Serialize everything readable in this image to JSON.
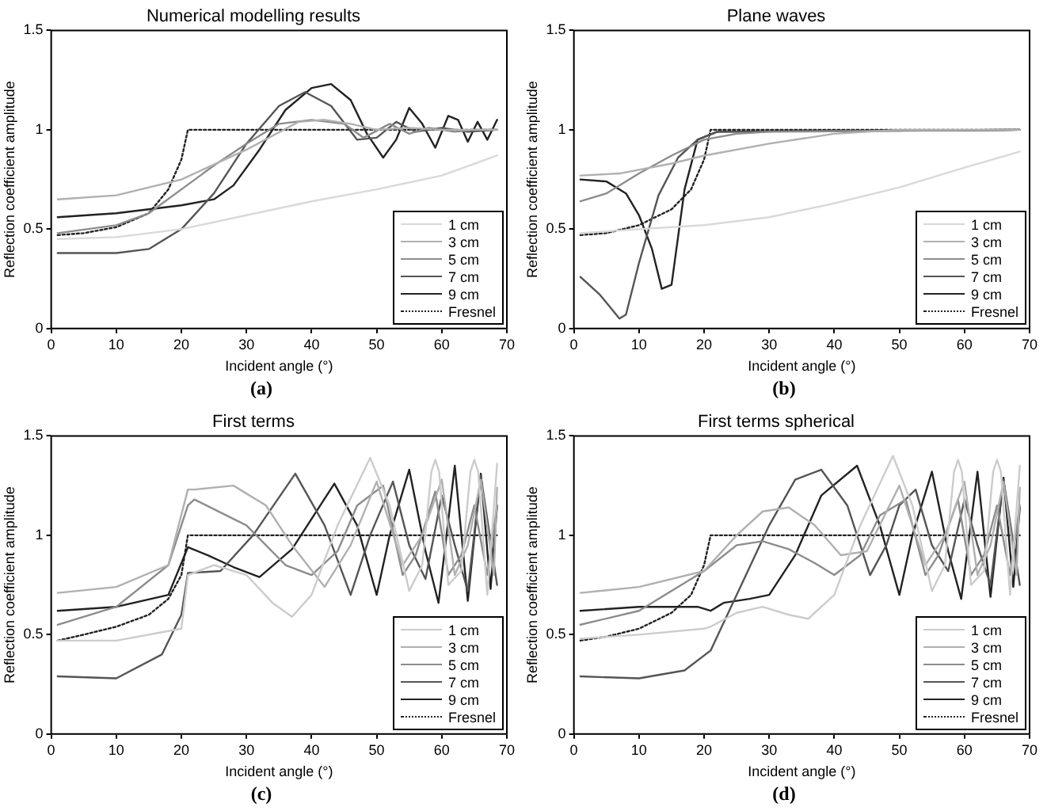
{
  "chart_data": [
    {
      "type": "line",
      "title": "Numerical modelling results",
      "xlabel": "Incident angle (°)",
      "ylabel": "Reflection coefficient amplitude",
      "xlim": [
        0,
        70
      ],
      "xticks": [
        0,
        10,
        20,
        30,
        40,
        50,
        60,
        70
      ],
      "ylim": [
        0,
        1.5
      ],
      "yticks": [
        0,
        0.5,
        1,
        1.5
      ],
      "legend": "bottom right",
      "annotations": [
        "(a)"
      ],
      "series": [
        {
          "name": "1 cm",
          "color": "#d9d9d9",
          "x": [
            1,
            10,
            20,
            30,
            40,
            50,
            60,
            68.5
          ],
          "values": [
            0.45,
            0.46,
            0.5,
            0.57,
            0.64,
            0.7,
            0.77,
            0.87
          ]
        },
        {
          "name": "3 cm",
          "color": "#b0b0b0",
          "x": [
            1,
            10,
            20,
            30,
            38,
            42,
            46,
            50,
            55,
            60,
            68.5
          ],
          "values": [
            0.65,
            0.67,
            0.75,
            0.9,
            1.04,
            1.05,
            1.03,
            1.0,
            1.01,
            1.0,
            1.0
          ]
        },
        {
          "name": "5 cm",
          "color": "#8c8c8c",
          "x": [
            1,
            10,
            15,
            20,
            25,
            30,
            35,
            40,
            45,
            48,
            52,
            55,
            58,
            62,
            65,
            68.5
          ],
          "values": [
            0.48,
            0.52,
            0.58,
            0.7,
            0.82,
            0.93,
            1.03,
            1.05,
            1.03,
            0.96,
            1.03,
            0.98,
            1.01,
            0.99,
            1.0,
            1.0
          ]
        },
        {
          "name": "7 cm",
          "color": "#555555",
          "x": [
            1,
            10,
            15,
            20,
            25,
            30,
            35,
            39,
            43,
            47,
            50,
            53,
            56,
            60,
            64,
            68.5
          ],
          "values": [
            0.38,
            0.38,
            0.4,
            0.5,
            0.68,
            0.93,
            1.12,
            1.19,
            1.12,
            0.95,
            0.96,
            1.04,
            0.99,
            1.01,
            0.99,
            1.0
          ]
        },
        {
          "name": "9 cm",
          "color": "#222222",
          "x": [
            1,
            10,
            20,
            25,
            28,
            32,
            36,
            40,
            43,
            46,
            48.5,
            51,
            53,
            55,
            57,
            59,
            61,
            62.5,
            64,
            65.5,
            67,
            68.5
          ],
          "values": [
            0.56,
            0.58,
            0.62,
            0.65,
            0.72,
            0.9,
            1.1,
            1.21,
            1.23,
            1.15,
            0.98,
            0.86,
            0.95,
            1.11,
            1.03,
            0.91,
            1.07,
            1.05,
            0.94,
            1.04,
            0.95,
            1.05
          ]
        },
        {
          "name": "Fresnel",
          "color": "#222222",
          "line_style": "dotted",
          "x": [
            1,
            5,
            10,
            15,
            18,
            20,
            21,
            68.5
          ],
          "values": [
            0.47,
            0.48,
            0.51,
            0.58,
            0.7,
            0.85,
            1.0,
            1.0
          ]
        }
      ]
    },
    {
      "type": "line",
      "title": "Plane waves",
      "xlabel": "Incident angle (°)",
      "ylabel": "Reflection coefficient amplitude",
      "xlim": [
        0,
        70
      ],
      "xticks": [
        0,
        10,
        20,
        30,
        40,
        50,
        60,
        70
      ],
      "ylim": [
        0,
        1.5
      ],
      "yticks": [
        0,
        0.5,
        1,
        1.5
      ],
      "legend": "bottom right",
      "annotations": [
        "(b)"
      ],
      "series": [
        {
          "name": "1 cm",
          "color": "#d9d9d9",
          "x": [
            1,
            10,
            20,
            30,
            40,
            50,
            60,
            68.5
          ],
          "values": [
            0.48,
            0.5,
            0.52,
            0.56,
            0.63,
            0.71,
            0.81,
            0.89
          ]
        },
        {
          "name": "3 cm",
          "color": "#b0b0b0",
          "x": [
            1,
            7,
            15,
            20,
            30,
            40,
            50,
            60,
            68.5
          ],
          "values": [
            0.77,
            0.78,
            0.83,
            0.87,
            0.93,
            0.98,
            1.0,
            1.0,
            1.0
          ]
        },
        {
          "name": "5 cm",
          "color": "#8c8c8c",
          "x": [
            1,
            5,
            10,
            15,
            20,
            25,
            30,
            68.5
          ],
          "values": [
            0.64,
            0.68,
            0.78,
            0.87,
            0.95,
            0.98,
            0.99,
            1.0
          ]
        },
        {
          "name": "7 cm",
          "color": "#555555",
          "x": [
            1,
            4,
            7,
            8,
            10,
            13,
            16,
            19,
            22,
            68.5
          ],
          "values": [
            0.26,
            0.17,
            0.05,
            0.07,
            0.33,
            0.67,
            0.86,
            0.95,
            0.99,
            1.0
          ]
        },
        {
          "name": "9 cm",
          "color": "#222222",
          "x": [
            1,
            5,
            8,
            10,
            12,
            13.5,
            15,
            17,
            19,
            22,
            68.5
          ],
          "values": [
            0.75,
            0.74,
            0.68,
            0.57,
            0.4,
            0.2,
            0.22,
            0.7,
            0.95,
            0.99,
            1.0
          ]
        },
        {
          "name": "Fresnel",
          "color": "#222222",
          "line_style": "dotted",
          "x": [
            1,
            5,
            10,
            15,
            18,
            20,
            21,
            68.5
          ],
          "values": [
            0.47,
            0.48,
            0.52,
            0.6,
            0.7,
            0.85,
            1.0,
            1.0
          ]
        }
      ]
    },
    {
      "type": "line",
      "title": "First terms",
      "xlabel": "Incident angle (°)",
      "ylabel": "Reflection coefficient amplitude",
      "xlim": [
        0,
        70
      ],
      "xticks": [
        0,
        10,
        20,
        30,
        40,
        50,
        60,
        70
      ],
      "ylim": [
        0,
        1.5
      ],
      "yticks": [
        0,
        0.5,
        1,
        1.5
      ],
      "legend": "bottom right",
      "annotations": [
        "(c)"
      ],
      "series": [
        {
          "name": "1 cm",
          "color": "#cccccc",
          "x": [
            1,
            10,
            20,
            21,
            25,
            30,
            34,
            37,
            40,
            44,
            49,
            52,
            55,
            57,
            58.4,
            59,
            59.6,
            61,
            63,
            64.4,
            65,
            65.6,
            67,
            68.5
          ],
          "values": [
            0.47,
            0.47,
            0.53,
            0.8,
            0.85,
            0.8,
            0.66,
            0.59,
            0.7,
            1.05,
            1.39,
            1.15,
            0.72,
            0.85,
            1.32,
            1.38,
            1.32,
            0.75,
            0.82,
            1.32,
            1.38,
            1.32,
            0.7,
            1.36
          ]
        },
        {
          "name": "3 cm",
          "color": "#b0b0b0",
          "x": [
            1,
            10,
            18,
            21,
            22,
            28,
            33,
            37,
            42,
            46,
            50,
            54,
            57,
            60,
            62,
            64,
            66,
            68,
            68.5
          ],
          "values": [
            0.71,
            0.74,
            0.85,
            1.23,
            1.23,
            1.25,
            1.15,
            0.95,
            0.74,
            0.95,
            1.27,
            0.85,
            1.0,
            1.28,
            0.8,
            0.95,
            1.28,
            0.8,
            1.24
          ]
        },
        {
          "name": "5 cm",
          "color": "#8c8c8c",
          "x": [
            1,
            10,
            18,
            21,
            22,
            30,
            36,
            40,
            44,
            47,
            51,
            54,
            56,
            59,
            61,
            63,
            65,
            67,
            68.5
          ],
          "values": [
            0.55,
            0.64,
            0.85,
            1.15,
            1.18,
            1.05,
            0.85,
            0.8,
            0.92,
            1.15,
            1.25,
            0.8,
            0.9,
            1.22,
            0.8,
            0.9,
            1.15,
            0.8,
            1.15
          ]
        },
        {
          "name": "7 cm",
          "color": "#555555",
          "x": [
            1,
            10,
            17,
            20,
            21,
            26,
            31,
            37.5,
            42,
            46,
            49,
            52.5,
            55,
            57.5,
            60,
            62,
            64,
            66,
            68.5
          ],
          "values": [
            0.29,
            0.28,
            0.4,
            0.6,
            0.81,
            0.82,
            1.0,
            1.31,
            1.05,
            0.7,
            1.0,
            1.27,
            0.95,
            0.78,
            1.2,
            0.95,
            0.72,
            1.3,
            0.75
          ]
        },
        {
          "name": "9 cm",
          "color": "#222222",
          "x": [
            1,
            10,
            18,
            21,
            24,
            28,
            32,
            37,
            43.5,
            47,
            50,
            52,
            55,
            57.5,
            59.5,
            62,
            64,
            66,
            67.5,
            68.5
          ],
          "values": [
            0.62,
            0.64,
            0.7,
            0.94,
            0.9,
            0.84,
            0.79,
            0.93,
            1.26,
            1.05,
            0.7,
            1.0,
            1.33,
            0.92,
            0.66,
            1.35,
            0.67,
            1.31,
            0.73,
            1.15
          ]
        },
        {
          "name": "Fresnel",
          "color": "#222222",
          "line_style": "dotted",
          "x": [
            1,
            5,
            10,
            15,
            18,
            20,
            21,
            68.5
          ],
          "values": [
            0.47,
            0.5,
            0.54,
            0.6,
            0.68,
            0.8,
            1.0,
            1.0
          ]
        }
      ]
    },
    {
      "type": "line",
      "title": "First terms spherical",
      "xlabel": "Incident angle (°)",
      "ylabel": "Reflection coefficient amplitude",
      "xlim": [
        0,
        70
      ],
      "xticks": [
        0,
        10,
        20,
        30,
        40,
        50,
        60,
        70
      ],
      "ylim": [
        0,
        1.5
      ],
      "yticks": [
        0,
        0.5,
        1,
        1.5
      ],
      "legend": "bottom right",
      "annotations": [
        "(d)"
      ],
      "series": [
        {
          "name": "1 cm",
          "color": "#cccccc",
          "x": [
            1,
            10,
            20,
            21,
            25,
            29,
            33,
            36,
            40,
            44,
            49,
            52,
            55,
            57,
            58.4,
            59,
            59.6,
            61,
            63,
            64.4,
            65,
            65.6,
            67,
            68.5
          ],
          "values": [
            0.48,
            0.5,
            0.53,
            0.54,
            0.61,
            0.64,
            0.6,
            0.58,
            0.7,
            1.05,
            1.4,
            1.15,
            0.72,
            0.85,
            1.32,
            1.38,
            1.32,
            0.75,
            0.82,
            1.32,
            1.38,
            1.32,
            0.7,
            1.35
          ]
        },
        {
          "name": "3 cm",
          "color": "#b0b0b0",
          "x": [
            1,
            10,
            20,
            25,
            29,
            33,
            37,
            41,
            45,
            50,
            54,
            57,
            60,
            62,
            64,
            66,
            68,
            68.5
          ],
          "values": [
            0.71,
            0.74,
            0.82,
            1.0,
            1.12,
            1.14,
            1.05,
            0.9,
            0.92,
            1.25,
            0.85,
            1.0,
            1.27,
            0.8,
            0.95,
            1.27,
            0.8,
            1.24
          ]
        },
        {
          "name": "5 cm",
          "color": "#8c8c8c",
          "x": [
            1,
            10,
            20,
            25,
            29,
            33,
            37,
            40,
            44,
            47,
            51,
            54,
            56,
            59,
            61,
            63,
            65,
            67,
            68.5
          ],
          "values": [
            0.55,
            0.62,
            0.82,
            0.95,
            0.97,
            0.93,
            0.86,
            0.8,
            0.9,
            1.1,
            1.18,
            0.8,
            0.9,
            1.18,
            0.8,
            0.9,
            1.15,
            0.8,
            1.15
          ]
        },
        {
          "name": "7 cm",
          "color": "#555555",
          "x": [
            1,
            10,
            17,
            21,
            25,
            30,
            34,
            38,
            42,
            45.5,
            48,
            50,
            52.5,
            55,
            57.5,
            60,
            62,
            64,
            66,
            68.5
          ],
          "values": [
            0.29,
            0.28,
            0.32,
            0.42,
            0.7,
            1.05,
            1.28,
            1.33,
            1.15,
            0.8,
            0.95,
            1.15,
            1.23,
            0.95,
            0.82,
            1.18,
            0.95,
            0.75,
            1.28,
            0.75
          ]
        },
        {
          "name": "9 cm",
          "color": "#222222",
          "x": [
            1,
            10,
            19,
            21,
            23,
            27,
            30,
            34,
            38,
            43.5,
            47,
            50,
            52,
            55,
            57.5,
            59.5,
            62,
            64,
            66,
            67.5,
            68.5
          ],
          "values": [
            0.62,
            0.64,
            0.64,
            0.62,
            0.66,
            0.68,
            0.7,
            0.9,
            1.2,
            1.35,
            1.05,
            0.7,
            1.0,
            1.32,
            0.92,
            0.68,
            1.32,
            0.69,
            1.29,
            0.74,
            1.14
          ]
        },
        {
          "name": "Fresnel",
          "color": "#222222",
          "line_style": "dotted",
          "x": [
            1,
            5,
            10,
            15,
            18,
            20,
            21,
            68.5
          ],
          "values": [
            0.47,
            0.49,
            0.53,
            0.61,
            0.7,
            0.85,
            1.0,
            1.0
          ]
        }
      ]
    }
  ]
}
